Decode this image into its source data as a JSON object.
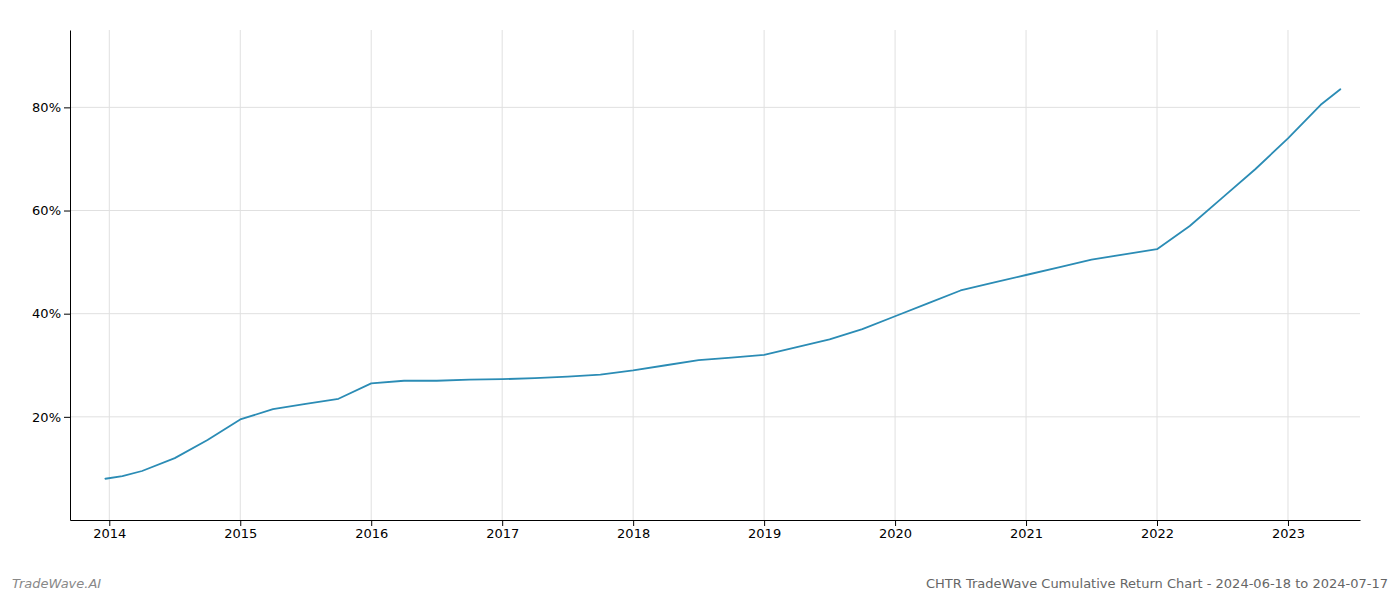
{
  "chart_data": {
    "type": "line",
    "title": "CHTR TradeWave Cumulative Return Chart - 2024-06-18 to 2024-07-17",
    "annotations": [
      "TradeWave.AI"
    ],
    "color": "#2b8cb5",
    "grid": true,
    "x": [
      2013.97,
      2014.1,
      2014.25,
      2014.5,
      2014.75,
      2015.0,
      2015.25,
      2015.5,
      2015.75,
      2016.0,
      2016.25,
      2016.5,
      2016.75,
      2017.0,
      2017.25,
      2017.5,
      2017.75,
      2018.0,
      2018.25,
      2018.5,
      2018.75,
      2019.0,
      2019.25,
      2019.5,
      2019.75,
      2020.0,
      2020.25,
      2020.5,
      2020.75,
      2021.0,
      2021.25,
      2021.5,
      2021.75,
      2022.0,
      2022.25,
      2022.5,
      2022.75,
      2023.0,
      2023.25,
      2023.4
    ],
    "values": [
      8.0,
      8.5,
      9.5,
      12.0,
      15.5,
      19.5,
      21.5,
      22.5,
      23.5,
      26.5,
      27.0,
      27.0,
      27.2,
      27.3,
      27.5,
      27.8,
      28.2,
      29.0,
      30.0,
      31.0,
      31.5,
      32.0,
      33.5,
      35.0,
      37.0,
      39.5,
      42.0,
      44.5,
      46.0,
      47.5,
      49.0,
      50.5,
      51.5,
      52.5,
      57.0,
      62.5,
      68.0,
      74.0,
      80.5,
      83.5
    ],
    "xlim": [
      2013.7,
      2023.55
    ],
    "ylim": [
      0,
      95
    ],
    "xticks": [
      2014,
      2015,
      2016,
      2017,
      2018,
      2019,
      2020,
      2021,
      2022,
      2023
    ],
    "yticks": [
      {
        "value": 20,
        "label": "20%"
      },
      {
        "value": 40,
        "label": "40%"
      },
      {
        "value": 60,
        "label": "60%"
      },
      {
        "value": 80,
        "label": "80%"
      }
    ]
  }
}
